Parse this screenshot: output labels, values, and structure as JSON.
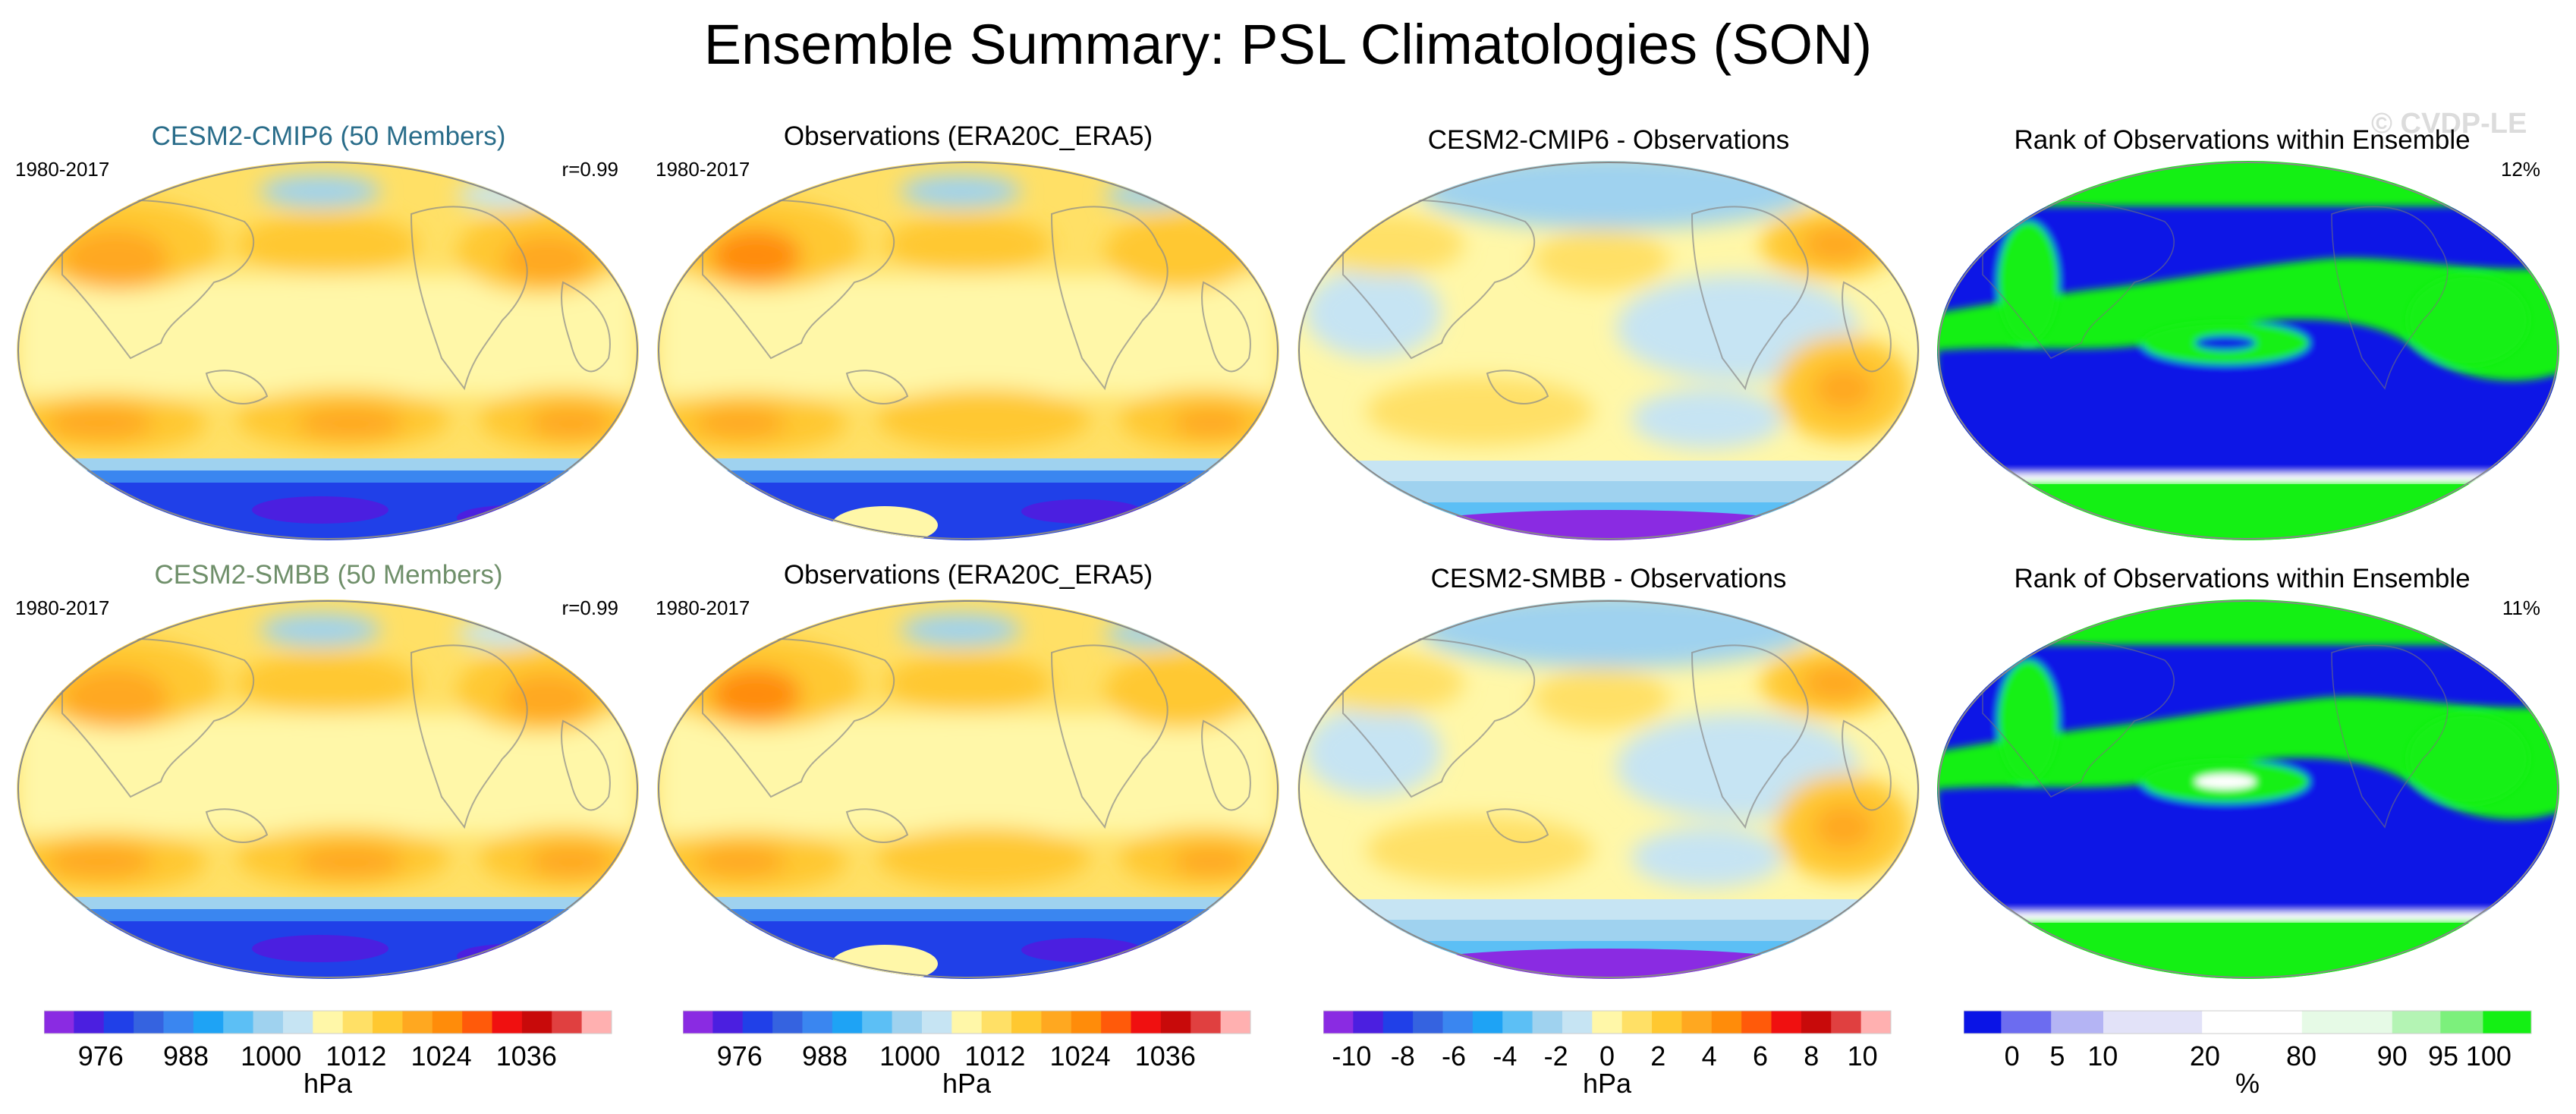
{
  "title": "Ensemble Summary: PSL Climatologies (SON)",
  "watermark": "© CVDP-LE",
  "rows": [
    {
      "model": {
        "title": "CESM2-CMIP6 (50 Members)",
        "title_color": "#2a6d8a",
        "period": "1980-2017",
        "corr": "r=0.99"
      },
      "obs": {
        "title": "Observations (ERA20C_ERA5)",
        "period": "1980-2017"
      },
      "diff": {
        "title": "CESM2-CMIP6 - Observations"
      },
      "rank": {
        "title": "Rank of Observations within Ensemble",
        "percent": "12%"
      }
    },
    {
      "model": {
        "title": "CESM2-SMBB (50 Members)",
        "title_color": "#6f8f6a",
        "period": "1980-2017",
        "corr": "r=0.99"
      },
      "obs": {
        "title": "Observations (ERA20C_ERA5)",
        "period": "1980-2017"
      },
      "diff": {
        "title": "CESM2-SMBB - Observations"
      },
      "rank": {
        "title": "Rank of Observations within Ensemble",
        "percent": "11%"
      }
    }
  ],
  "colorbars": [
    {
      "unit": "hPa",
      "ticks": [
        "976",
        "988",
        "1000",
        "1012",
        "1024",
        "1036"
      ],
      "colors": [
        "#8a2be2",
        "#4b1fe0",
        "#2040e8",
        "#3563e0",
        "#3a86f0",
        "#1ea3f5",
        "#5cbff5",
        "#9fd2ef",
        "#c6e4f3",
        "#fff7a8",
        "#ffe066",
        "#ffc830",
        "#ffa820",
        "#ff8c0a",
        "#ff5a0a",
        "#f01010",
        "#c80a0a",
        "#e04040",
        "#ffb0b0"
      ]
    },
    {
      "unit": "hPa",
      "ticks": [
        "976",
        "988",
        "1000",
        "1012",
        "1024",
        "1036"
      ],
      "colors": [
        "#8a2be2",
        "#4b1fe0",
        "#2040e8",
        "#3563e0",
        "#3a86f0",
        "#1ea3f5",
        "#5cbff5",
        "#9fd2ef",
        "#c6e4f3",
        "#fff7a8",
        "#ffe066",
        "#ffc830",
        "#ffa820",
        "#ff8c0a",
        "#ff5a0a",
        "#f01010",
        "#c80a0a",
        "#e04040",
        "#ffb0b0"
      ]
    },
    {
      "unit": "hPa",
      "ticks": [
        "-10",
        "-8",
        "-6",
        "-4",
        "-2",
        "0",
        "2",
        "4",
        "6",
        "8",
        "10"
      ],
      "colors": [
        "#8a2be2",
        "#4b1fe0",
        "#2040e8",
        "#3563e0",
        "#3a86f0",
        "#1ea3f5",
        "#5cbff5",
        "#9fd2ef",
        "#c6e4f3",
        "#fff7a8",
        "#ffe066",
        "#ffc830",
        "#ffa820",
        "#ff8c0a",
        "#ff5a0a",
        "#f01010",
        "#c80a0a",
        "#e04040",
        "#ffb0b0"
      ]
    },
    {
      "unit": "%",
      "ticks": [
        "0",
        "5",
        "10",
        "20",
        "80",
        "90",
        "95",
        "100"
      ],
      "colors": [
        "#0a14e6",
        "#6c6cf0",
        "#b4b4f4",
        "#e2e2f8",
        "#ffffff",
        "#e6fae6",
        "#b4f4b4",
        "#7cf07c",
        "#14f014"
      ]
    }
  ],
  "colors": {
    "psl_low": "#2040e8",
    "psl_mid": "#fff7a8",
    "psl_high": "#ffa820",
    "diff_neg": "#9fd2ef",
    "diff_pos": "#ffc830",
    "rank_low": "#0a14e6",
    "rank_high": "#14f014",
    "coast": "#8a8a8a"
  }
}
